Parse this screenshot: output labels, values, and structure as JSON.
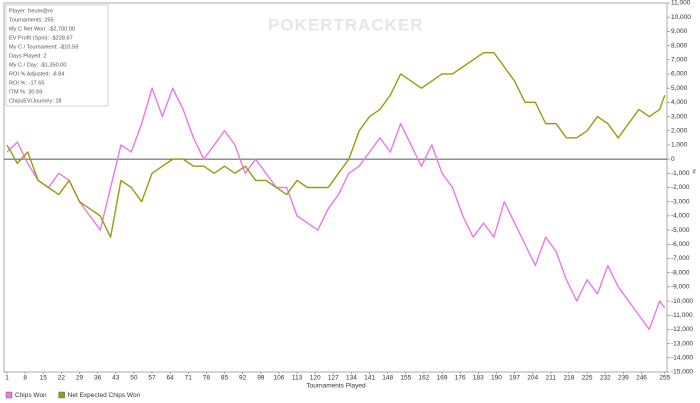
{
  "chart_data": {
    "type": "line",
    "x_label": "Tournaments Played",
    "y_label": "#",
    "watermark": "POKERTRACKER",
    "info_box": [
      "Player: freum@re",
      "Tournaments: 255",
      "My C Net Won: -$2,700.00",
      "EV Profit (Spin): -$228.67",
      "My C / Tournament: -$10.59",
      "Days Played: 2",
      "My C / Day: -$1,350.00",
      "ROI % Adjusted: -8.84",
      "ROI %: -17.65",
      "ITM %: 30.59",
      "ChipsEV/Journey: 18"
    ],
    "x": [
      1,
      5,
      9,
      13,
      17,
      21,
      25,
      29,
      33,
      37,
      41,
      45,
      49,
      53,
      57,
      61,
      65,
      69,
      73,
      77,
      81,
      85,
      89,
      93,
      97,
      101,
      105,
      109,
      113,
      117,
      121,
      125,
      129,
      133,
      137,
      141,
      145,
      149,
      153,
      157,
      161,
      165,
      169,
      173,
      177,
      181,
      185,
      189,
      193,
      197,
      201,
      205,
      209,
      213,
      217,
      221,
      225,
      229,
      233,
      237,
      241,
      245,
      249,
      253,
      255
    ],
    "series": [
      {
        "name": "Chips Won",
        "color": "#e879e8",
        "values": [
          500,
          1200,
          -300,
          -1500,
          -2000,
          -1000,
          -1500,
          -3000,
          -4000,
          -5000,
          -2000,
          1000,
          500,
          2500,
          5000,
          3000,
          5000,
          3500,
          1500,
          0,
          1000,
          2000,
          1000,
          -1000,
          0,
          -1000,
          -2000,
          -2000,
          -4000,
          -4500,
          -5000,
          -3500,
          -2500,
          -1000,
          -500,
          500,
          1500,
          500,
          2500,
          1000,
          -500,
          1000,
          -1000,
          -2000,
          -4000,
          -5500,
          -4500,
          -5500,
          -3000,
          -4500,
          -6000,
          -7500,
          -5500,
          -6500,
          -8500,
          -10000,
          -8500,
          -9500,
          -7500,
          -9000,
          -10000,
          -11000,
          -12000,
          -10000,
          -10500
        ]
      },
      {
        "name": "Net Expected Chips Won",
        "color": "#9a9a10",
        "values": [
          1000,
          -300,
          500,
          -1500,
          -2000,
          -2500,
          -1500,
          -3000,
          -3500,
          -4000,
          -5500,
          -1500,
          -2000,
          -3000,
          -1000,
          -500,
          0,
          0,
          -500,
          -500,
          -1000,
          -500,
          -1000,
          -500,
          -1500,
          -1500,
          -2000,
          -2500,
          -1500,
          -2000,
          -2000,
          -2000,
          -1000,
          0,
          2000,
          3000,
          3500,
          4500,
          6000,
          5500,
          5000,
          5500,
          6000,
          6000,
          6500,
          7000,
          7500,
          7500,
          6500,
          5500,
          4000,
          4000,
          2500,
          2500,
          1500,
          1500,
          2000,
          3000,
          2500,
          1500,
          2500,
          3500,
          3000,
          3500,
          4500
        ]
      }
    ],
    "xlim": [
      1,
      257
    ],
    "xticks": [
      1,
      8,
      15,
      22,
      29,
      36,
      43,
      50,
      57,
      64,
      71,
      78,
      85,
      92,
      99,
      106,
      113,
      120,
      127,
      134,
      141,
      148,
      155,
      162,
      169,
      176,
      183,
      190,
      197,
      204,
      211,
      218,
      225,
      232,
      239,
      246,
      255
    ],
    "ylim": [
      -15000,
      11000
    ],
    "yticks": [
      {
        "value": -15000,
        "label": "-15,000"
      },
      {
        "value": -14000,
        "label": "-14,000"
      },
      {
        "value": -13000,
        "label": "-13,000"
      },
      {
        "value": -12000,
        "label": "-12,000"
      },
      {
        "value": -11000,
        "label": "-11,000"
      },
      {
        "value": -10000,
        "label": "-10,000"
      },
      {
        "value": -9000,
        "label": "-9,000"
      },
      {
        "value": -8000,
        "label": "-8,000"
      },
      {
        "value": -7000,
        "label": "-7,000"
      },
      {
        "value": -6000,
        "label": "-6,000"
      },
      {
        "value": -5000,
        "label": "-5,000"
      },
      {
        "value": -4000,
        "label": "-4,000"
      },
      {
        "value": -3000,
        "label": "-3,000"
      },
      {
        "value": -2000,
        "label": "-2,000"
      },
      {
        "value": -1000,
        "label": "-1,000"
      },
      0,
      {
        "value": 1000,
        "label": "1,000"
      },
      {
        "value": 2000,
        "label": "2,000"
      },
      {
        "value": 3000,
        "label": "3,000"
      },
      {
        "value": 4000,
        "label": "4,000"
      },
      {
        "value": 5000,
        "label": "5,000"
      },
      {
        "value": 6000,
        "label": "6,000"
      },
      {
        "value": 7000,
        "label": "7,000"
      },
      {
        "value": 8000,
        "label": "8,000"
      },
      {
        "value": 9000,
        "label": "9,000"
      },
      {
        "value": 10000,
        "label": "10,000"
      },
      {
        "value": 11000,
        "label": "11,000"
      }
    ]
  }
}
